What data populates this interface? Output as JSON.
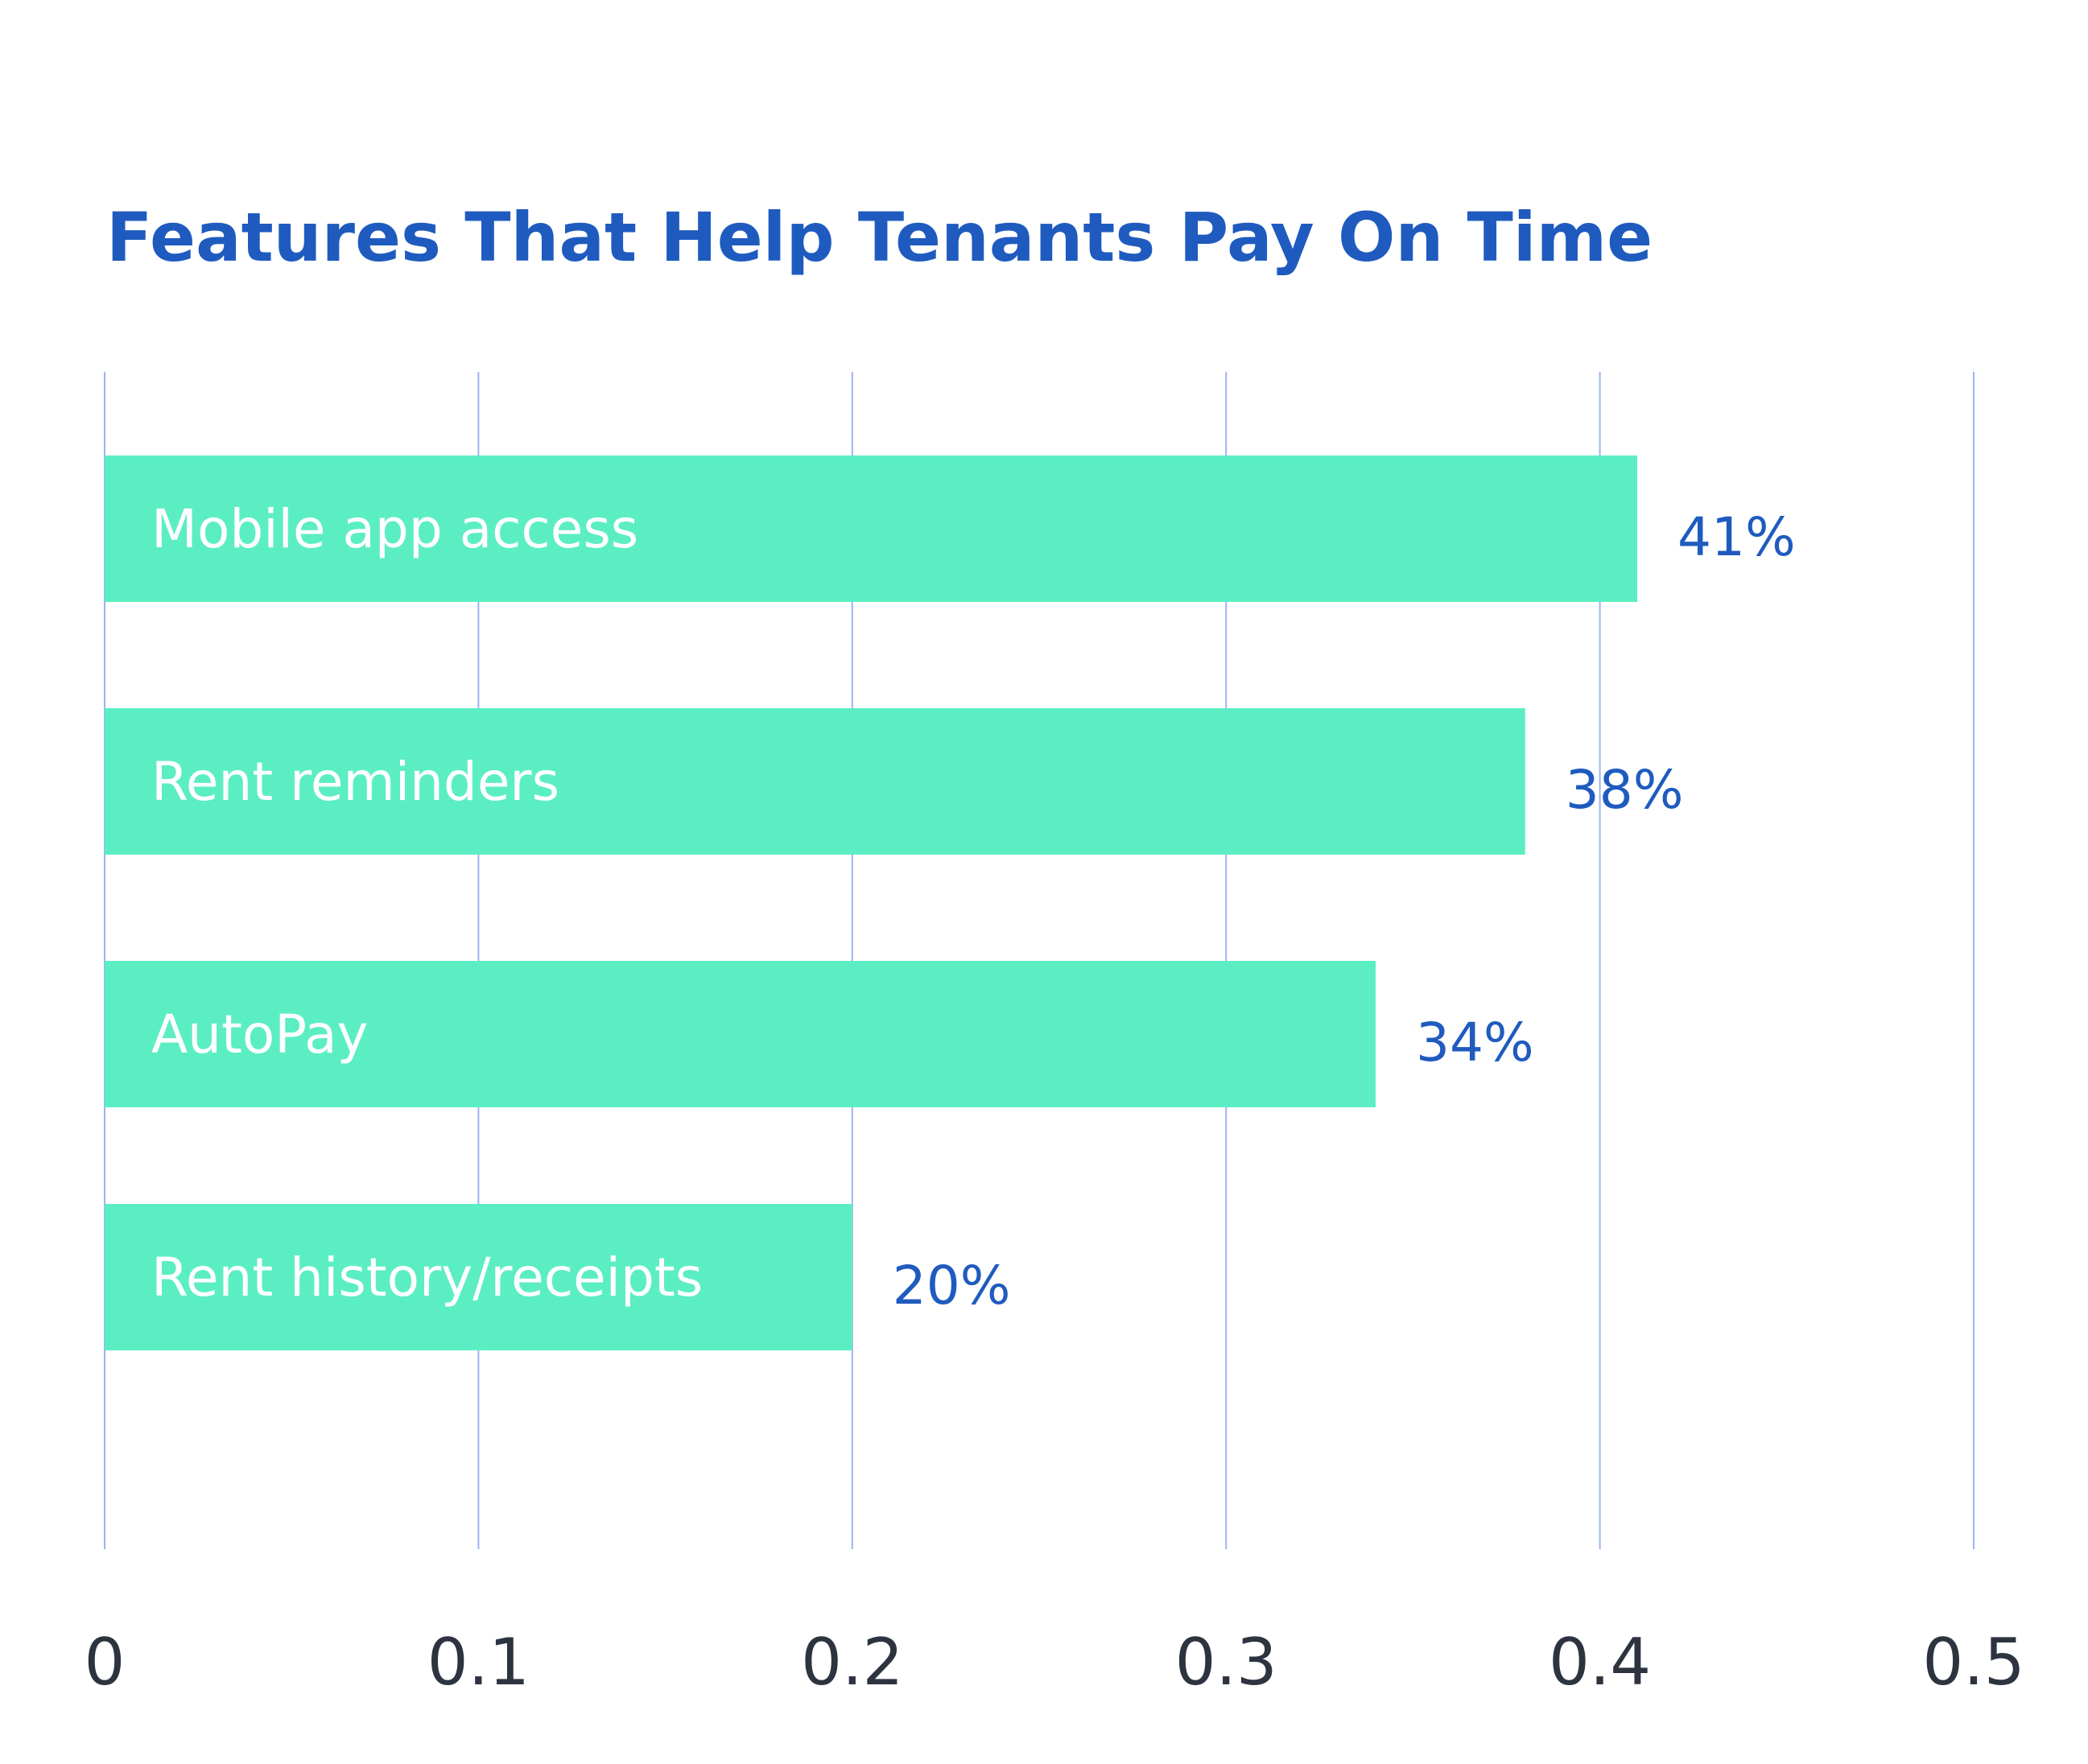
{
  "colors": {
    "title": "#1f5bbf",
    "bar": "#5ceec3",
    "bar_label": "#ffffff",
    "value_label": "#1f5bbf",
    "gridline": "#9db4f2",
    "tick_label": "#2d3440",
    "background": "#ffffff"
  },
  "chart_data": {
    "type": "bar",
    "orientation": "horizontal",
    "title": "Features That Help Tenants Pay On Time",
    "categories": [
      "Mobile app access",
      "Rent reminders",
      "AutoPay",
      "Rent history/receipts"
    ],
    "values": [
      0.41,
      0.38,
      0.34,
      0.2
    ],
    "value_labels": [
      "41%",
      "38%",
      "34%",
      "20%"
    ],
    "x_ticks": [
      "0",
      "0.1",
      "0.2",
      "0.3",
      "0.4",
      "0.5"
    ],
    "xlim": [
      0,
      0.5
    ],
    "grid": true,
    "legend": "none"
  }
}
